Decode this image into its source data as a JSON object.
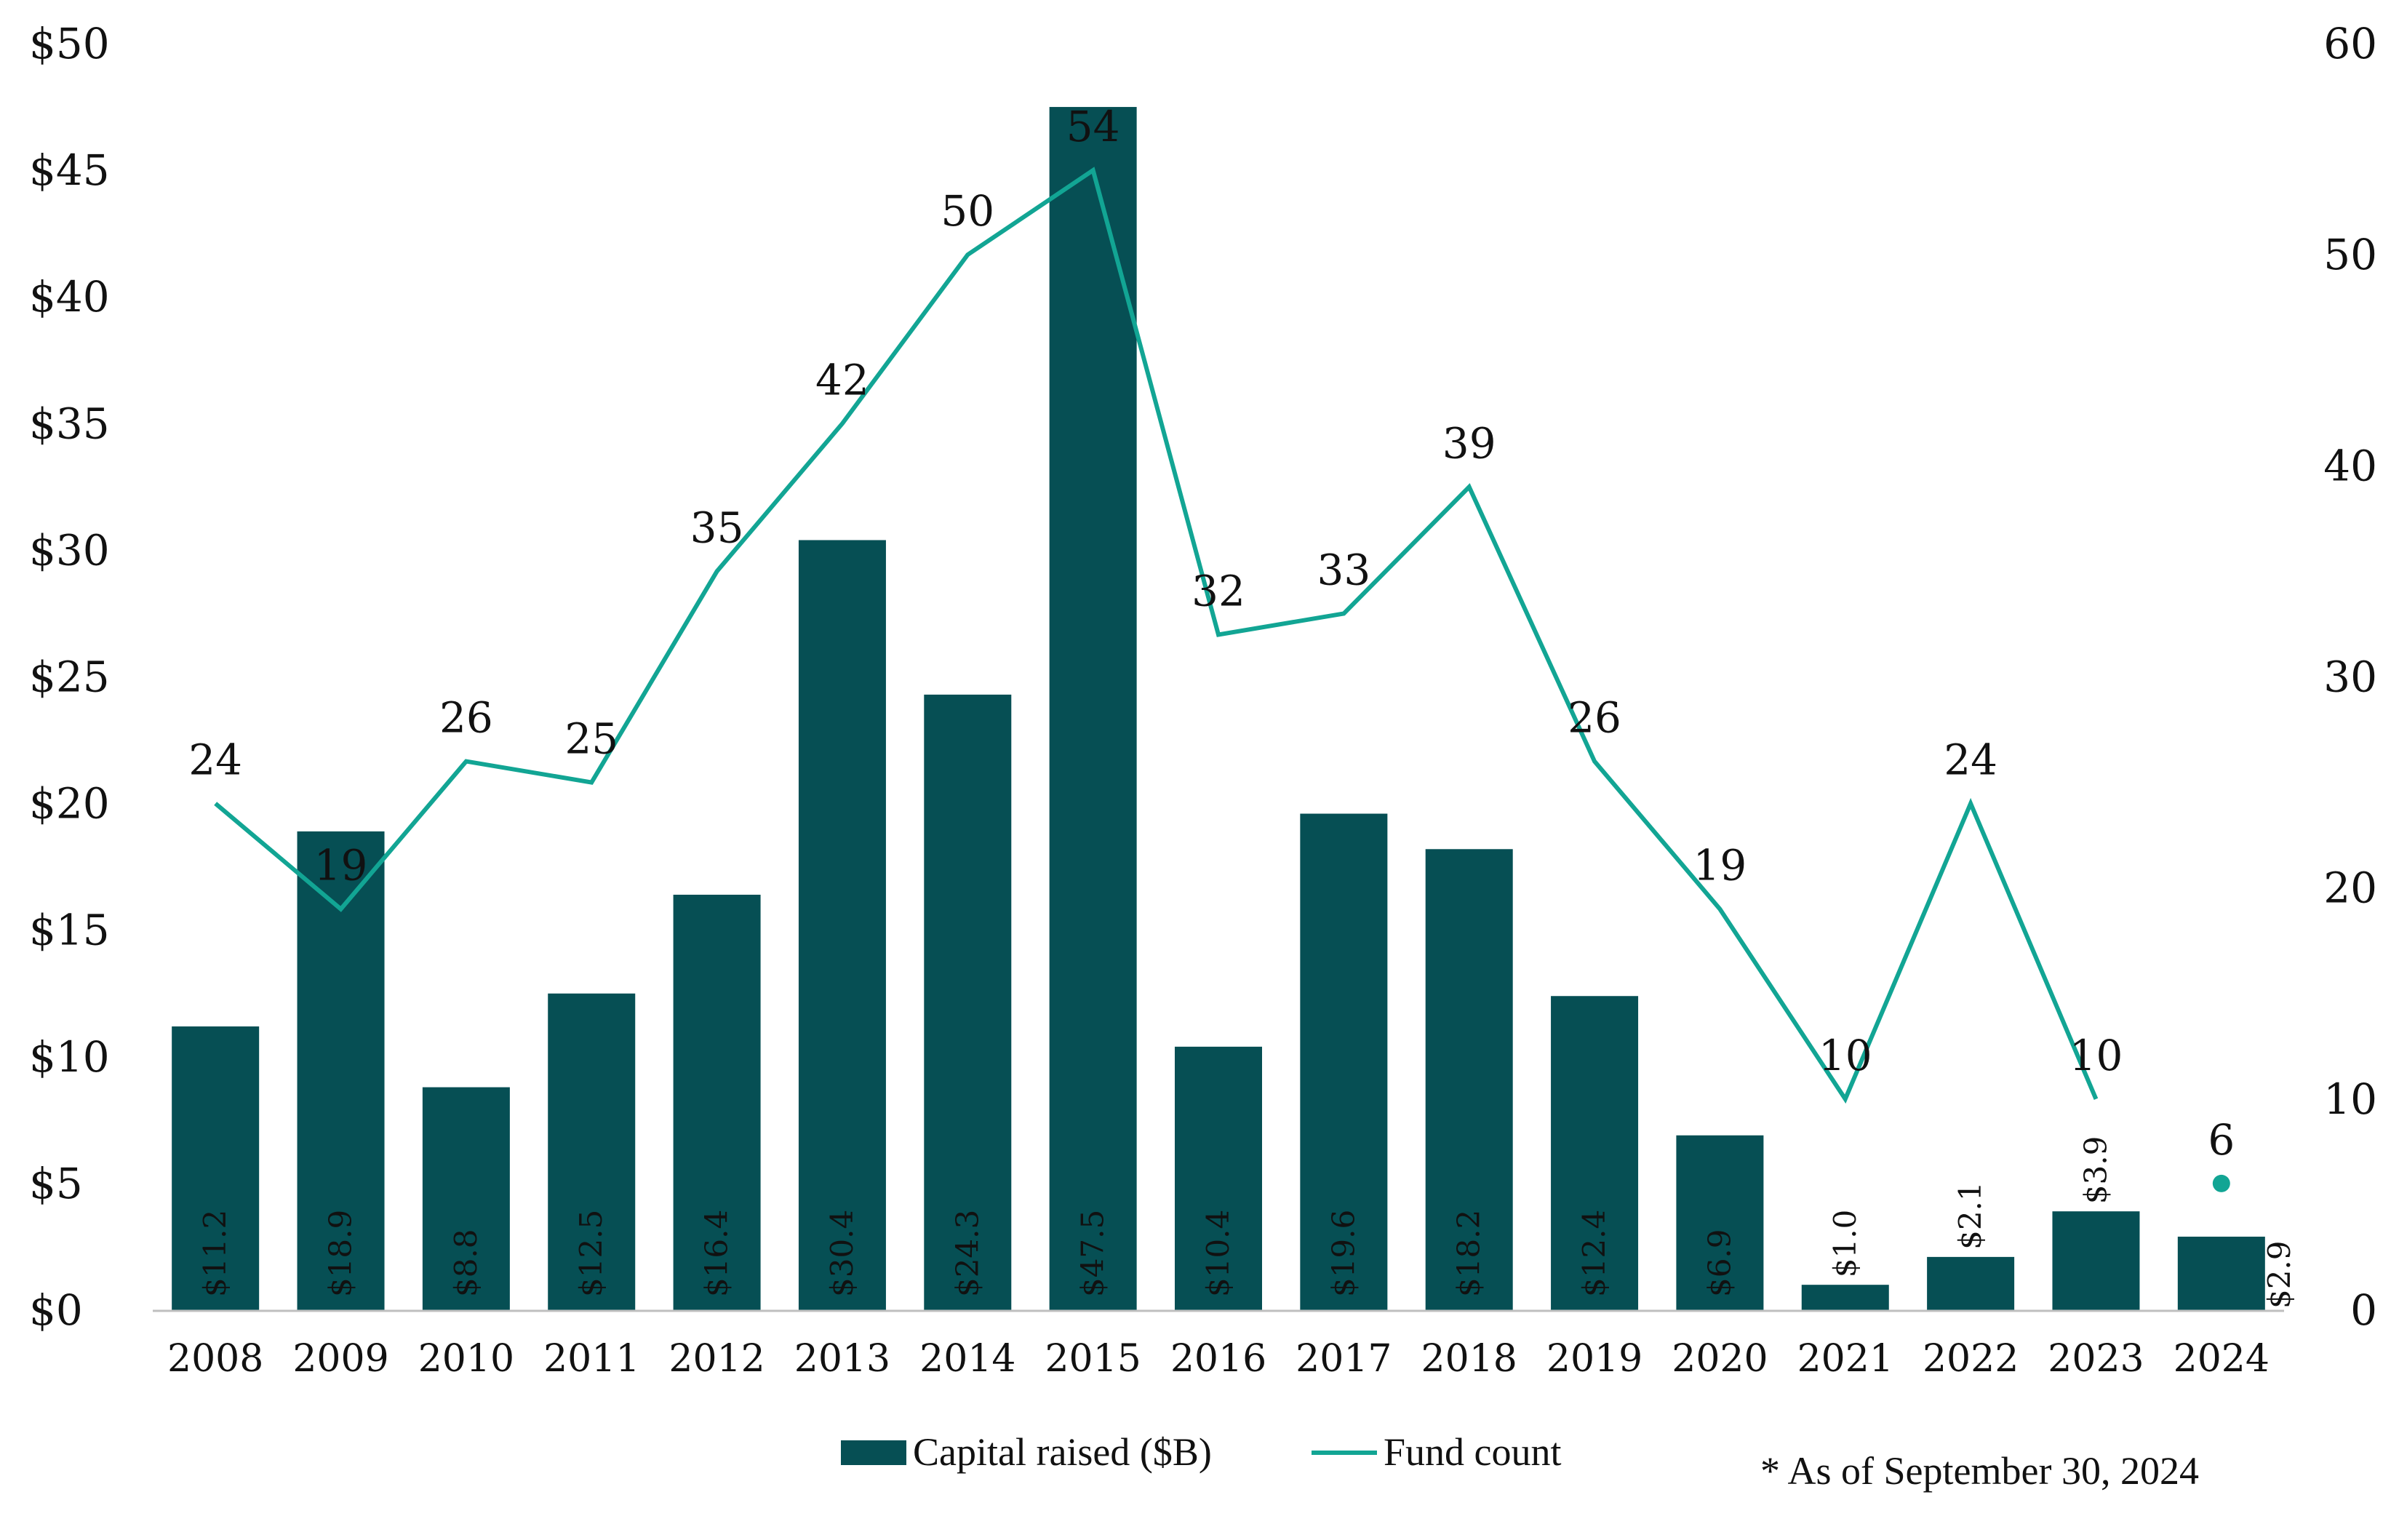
{
  "chart_data": {
    "type": "bar",
    "title": "",
    "categories": [
      "2008",
      "2009",
      "2010",
      "2011",
      "2012",
      "2013",
      "2014",
      "2015",
      "2016",
      "2017",
      "2018",
      "2019",
      "2020",
      "2021",
      "2022",
      "2023",
      "2024"
    ],
    "series": [
      {
        "name": "Capital raised ($B)",
        "kind": "bar",
        "axis": "left",
        "color": "#064F54",
        "values": [
          11.2,
          18.9,
          8.8,
          12.5,
          16.4,
          30.4,
          24.3,
          47.5,
          10.4,
          19.6,
          18.2,
          12.4,
          6.9,
          1.0,
          2.1,
          3.9,
          2.9
        ],
        "labels": [
          "$11.2",
          "$18.9",
          "$8.8",
          "$12.5",
          "$16.4",
          "$30.4",
          "$24.3",
          "$47.5",
          "$10.4",
          "$19.6",
          "$18.2",
          "$12.4",
          "$6.9",
          "$1.0",
          "$2.1",
          "$3.9",
          "$2.9"
        ]
      },
      {
        "name": "Fund count",
        "kind": "line",
        "axis": "right",
        "color": "#12A594",
        "values": [
          24,
          19,
          26,
          25,
          35,
          42,
          50,
          54,
          32,
          33,
          39,
          26,
          19,
          10,
          24,
          10,
          6
        ],
        "labels": [
          "24",
          "19",
          "26",
          "25",
          "35",
          "42",
          "50",
          "54",
          "32",
          "33",
          "39",
          "26",
          "19",
          "10",
          "24",
          "10",
          "6"
        ]
      }
    ],
    "left_axis": {
      "min": 0,
      "max": 50,
      "step": 5,
      "tick_labels": [
        "$0",
        "$5",
        "$10",
        "$15",
        "$20",
        "$25",
        "$30",
        "$35",
        "$40",
        "$45",
        "$50"
      ]
    },
    "right_axis": {
      "min": 0,
      "max": 60,
      "step": 10,
      "tick_labels": [
        "0",
        "10",
        "20",
        "30",
        "40",
        "50",
        "60"
      ]
    },
    "xlabel": "",
    "ylabel": "",
    "legend": {
      "position": "bottom",
      "entries": [
        "Capital raised ($B)",
        "Fund count"
      ]
    },
    "footnote": "* As of September 30, 2024"
  }
}
